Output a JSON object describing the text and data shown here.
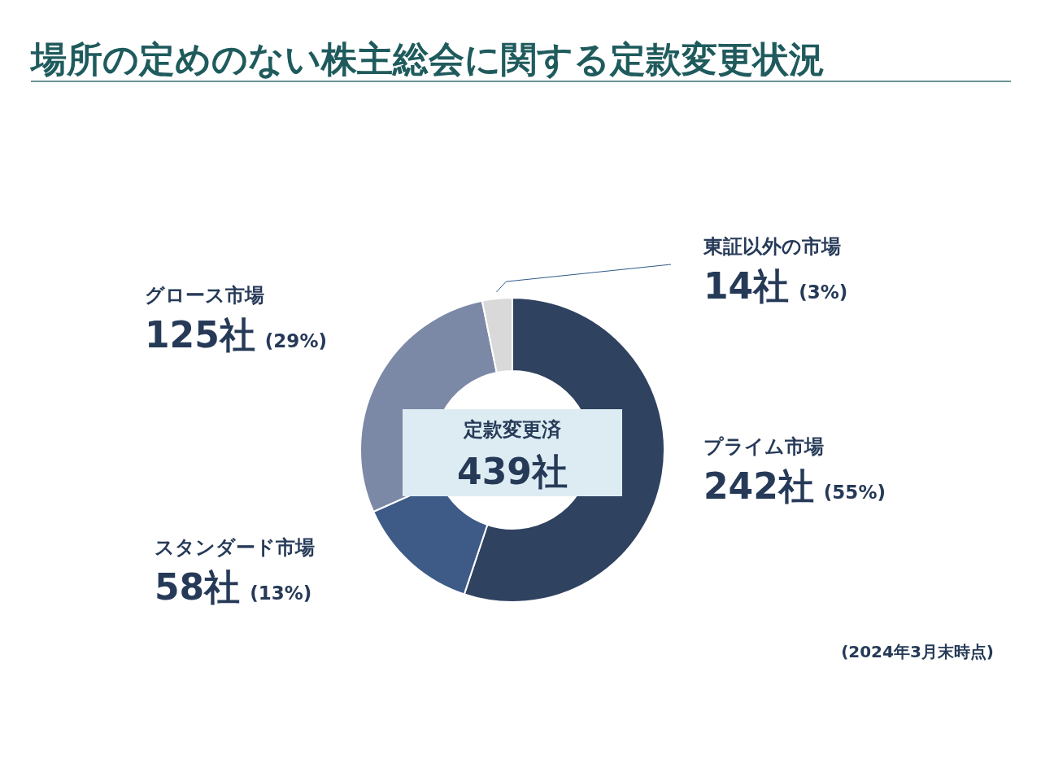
{
  "chart_data": {
    "type": "donut",
    "title": "場所の定めのない株主総会に関する定款変更状況",
    "categories": [
      "プライム市場",
      "スタンダード市場",
      "グロース市場",
      "東証以外の市場"
    ],
    "values": [
      242,
      58,
      125,
      14
    ],
    "colors": [
      "#2f425f",
      "#3e5a87",
      "#7b89a7",
      "#d9d9d9"
    ],
    "value_labels": [
      "242社 (55%)",
      "58社 (13%)",
      "125社 (29%)",
      "14社 (3%)"
    ],
    "annotations": [
      "定款変更済",
      "439社",
      "(2024年3月末時点)"
    ]
  }
}
